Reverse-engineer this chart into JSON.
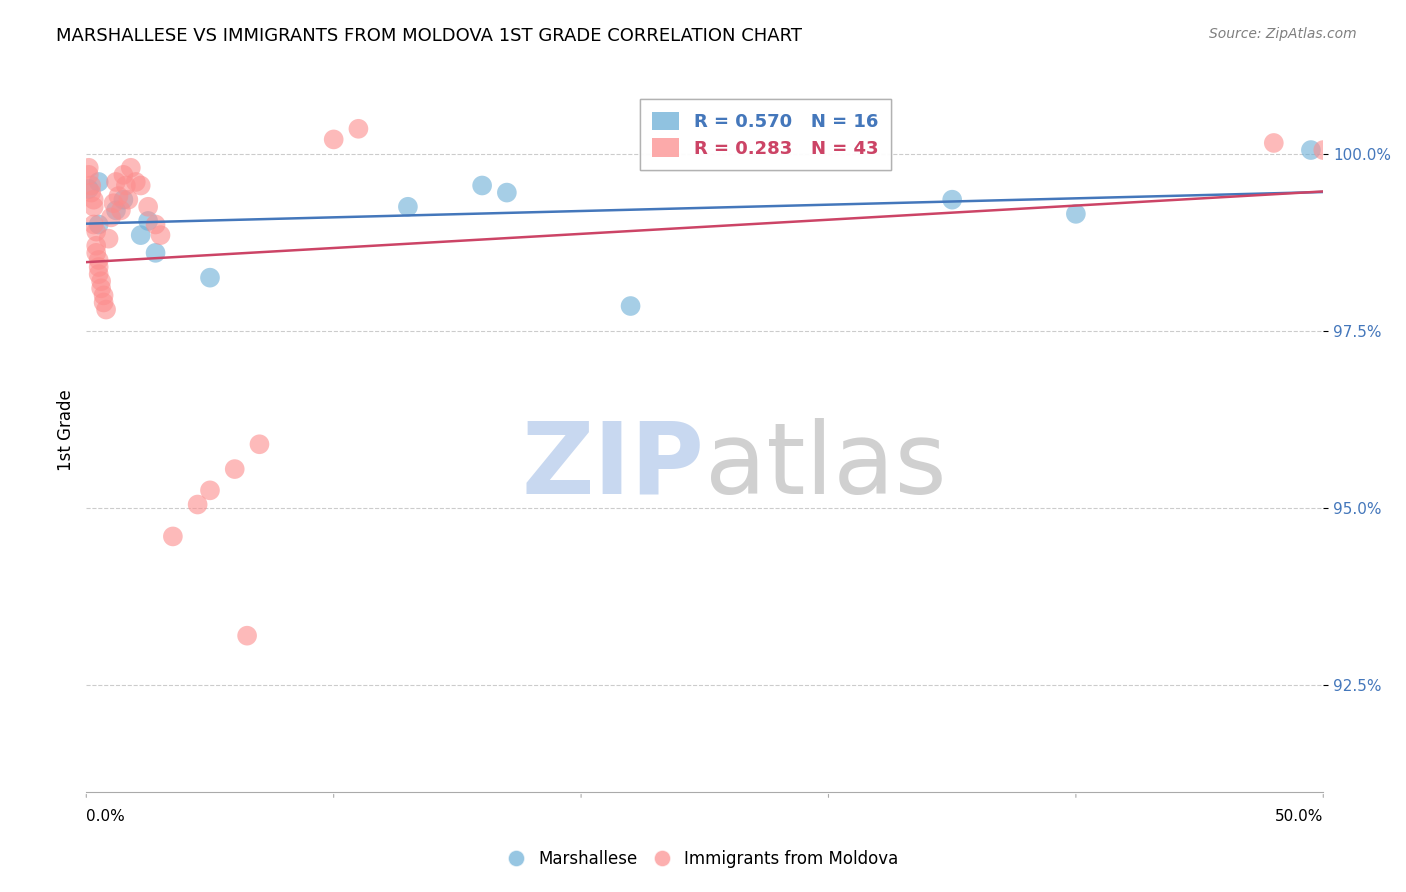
{
  "title": "MARSHALLESE VS IMMIGRANTS FROM MOLDOVA 1ST GRADE CORRELATION CHART",
  "source": "Source: ZipAtlas.com",
  "ylabel": "1st Grade",
  "yticks": [
    92.5,
    95.0,
    97.5,
    100.0
  ],
  "ytick_labels": [
    "92.5%",
    "95.0%",
    "97.5%",
    "100.0%"
  ],
  "xmin": 0.0,
  "xmax": 0.5,
  "ymin": 91.0,
  "ymax": 101.2,
  "blue_R": 0.57,
  "blue_N": 16,
  "pink_R": 0.283,
  "pink_N": 43,
  "blue_color": "#6baed6",
  "pink_color": "#fc8d8d",
  "line_blue": "#4477bb",
  "line_pink": "#cc4466",
  "blue_points_x": [
    0.001,
    0.005,
    0.012,
    0.015,
    0.022,
    0.025,
    0.028,
    0.05,
    0.13,
    0.16,
    0.17,
    0.22,
    0.35,
    0.4,
    0.005,
    0.495
  ],
  "blue_points_y": [
    99.5,
    99.6,
    99.2,
    99.35,
    98.85,
    99.05,
    98.6,
    98.25,
    99.25,
    99.55,
    99.45,
    97.85,
    99.35,
    99.15,
    99.0,
    100.05
  ],
  "pink_points_x": [
    0.001,
    0.001,
    0.002,
    0.002,
    0.003,
    0.003,
    0.003,
    0.004,
    0.004,
    0.004,
    0.005,
    0.005,
    0.005,
    0.006,
    0.006,
    0.007,
    0.007,
    0.008,
    0.009,
    0.01,
    0.011,
    0.012,
    0.013,
    0.014,
    0.015,
    0.016,
    0.017,
    0.018,
    0.02,
    0.022,
    0.025,
    0.028,
    0.03,
    0.035,
    0.045,
    0.05,
    0.06,
    0.065,
    0.07,
    0.1,
    0.11,
    0.48,
    0.5
  ],
  "pink_points_y": [
    99.8,
    99.7,
    99.55,
    99.45,
    99.35,
    99.25,
    99.0,
    98.9,
    98.7,
    98.6,
    98.5,
    98.4,
    98.3,
    98.2,
    98.1,
    98.0,
    97.9,
    97.8,
    98.8,
    99.1,
    99.3,
    99.6,
    99.4,
    99.2,
    99.7,
    99.55,
    99.35,
    99.8,
    99.6,
    99.55,
    99.25,
    99.0,
    98.85,
    94.6,
    95.05,
    95.25,
    95.55,
    93.2,
    95.9,
    100.2,
    100.35,
    100.15,
    100.05
  ],
  "watermark_zip_color": "#c8d8f0",
  "watermark_atlas_color": "#d0d0d0",
  "xtick_positions": [
    0.0,
    0.1,
    0.2,
    0.3,
    0.4,
    0.5
  ]
}
